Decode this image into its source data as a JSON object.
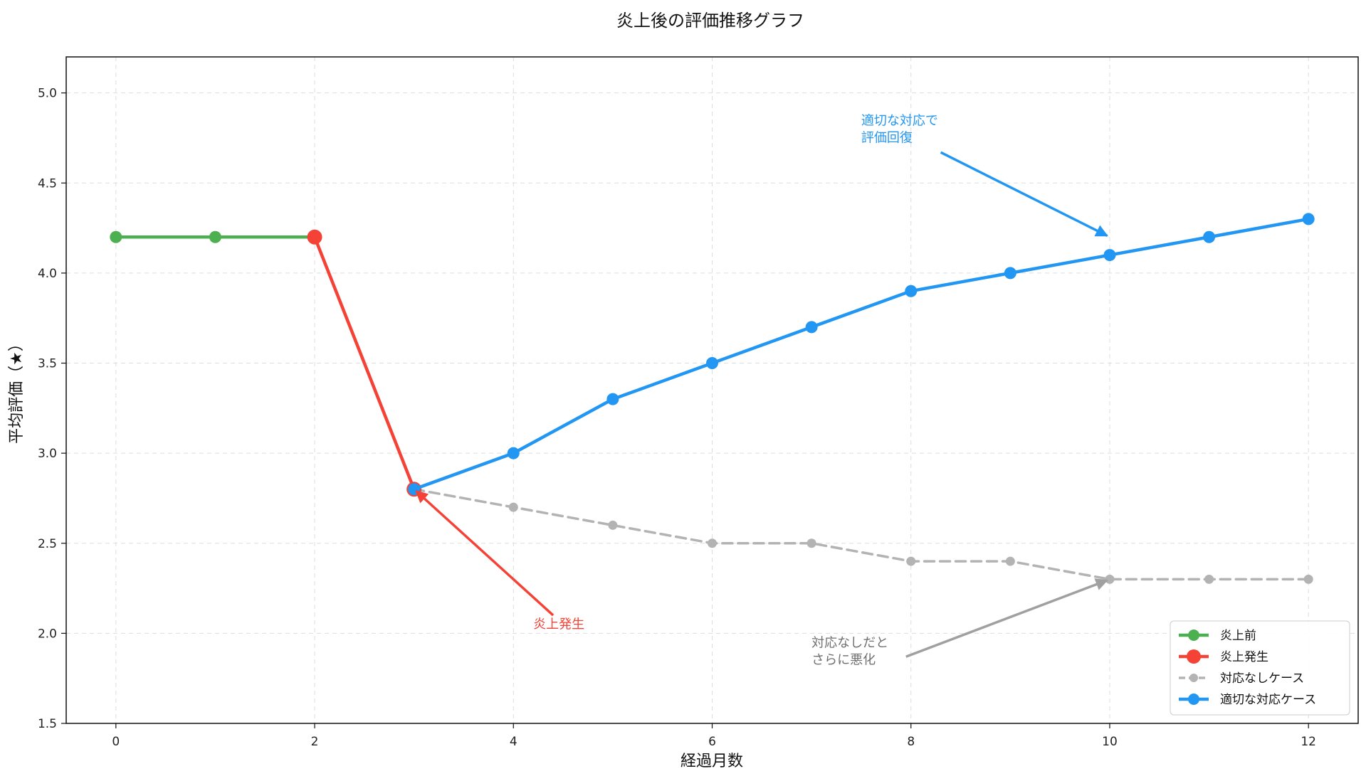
{
  "chart_data": {
    "type": "line",
    "title": "炎上後の評価推移グラフ",
    "xlabel": "経過月数",
    "ylabel": "平均評価（★）",
    "xlim": [
      -0.5,
      12.5
    ],
    "ylim": [
      1.5,
      5.2
    ],
    "xticks": [
      0,
      2,
      4,
      6,
      8,
      10,
      12
    ],
    "yticks": [
      1.5,
      2.0,
      2.5,
      3.0,
      3.5,
      4.0,
      4.5,
      5.0
    ],
    "xtick_labels": [
      "0",
      "2",
      "4",
      "6",
      "8",
      "10",
      "12"
    ],
    "ytick_labels": [
      "1.5",
      "2.0",
      "2.5",
      "3.0",
      "3.5",
      "4.0",
      "4.5",
      "5.0"
    ],
    "grid": true,
    "legend_position": "lower-right",
    "series": [
      {
        "name": "炎上前",
        "color": "#4caf50",
        "style": "solid",
        "x": [
          0,
          1,
          2
        ],
        "y": [
          4.2,
          4.2,
          4.2
        ]
      },
      {
        "name": "炎上発生",
        "color": "#f44336",
        "style": "solid",
        "x": [
          2,
          3
        ],
        "y": [
          4.2,
          2.8
        ]
      },
      {
        "name": "対応なしケース",
        "color": "#b3b3b3",
        "style": "dashed",
        "x": [
          3,
          4,
          5,
          6,
          7,
          8,
          9,
          10,
          11,
          12
        ],
        "y": [
          2.8,
          2.7,
          2.6,
          2.5,
          2.5,
          2.4,
          2.4,
          2.3,
          2.3,
          2.3
        ]
      },
      {
        "name": "適切な対応ケース",
        "color": "#2196f3",
        "style": "solid",
        "x": [
          3,
          4,
          5,
          6,
          7,
          8,
          9,
          10,
          11,
          12
        ],
        "y": [
          2.8,
          3.0,
          3.3,
          3.5,
          3.7,
          3.9,
          4.0,
          4.1,
          4.2,
          4.3
        ]
      }
    ],
    "annotations": [
      {
        "lines": [
          "炎上発生"
        ],
        "color": "#f44336",
        "arrow_color": "#f44336",
        "point": [
          3,
          2.8
        ],
        "text_at": [
          4.2,
          2.05
        ],
        "tail_at": [
          4.4,
          2.1
        ]
      },
      {
        "lines": [
          "適切な対応で",
          "評価回復"
        ],
        "color": "#2196f3",
        "arrow_color": "#2196f3",
        "point": [
          10,
          4.2
        ],
        "text_at": [
          7.5,
          4.8
        ],
        "tail_at": [
          8.3,
          4.67
        ]
      },
      {
        "lines": [
          "対応なしだと",
          "さらに悪化"
        ],
        "color": "#707070",
        "arrow_color": "#a0a0a0",
        "point": [
          10,
          2.3
        ],
        "text_at": [
          7.0,
          1.9
        ],
        "tail_at": [
          7.95,
          1.87
        ]
      }
    ]
  }
}
